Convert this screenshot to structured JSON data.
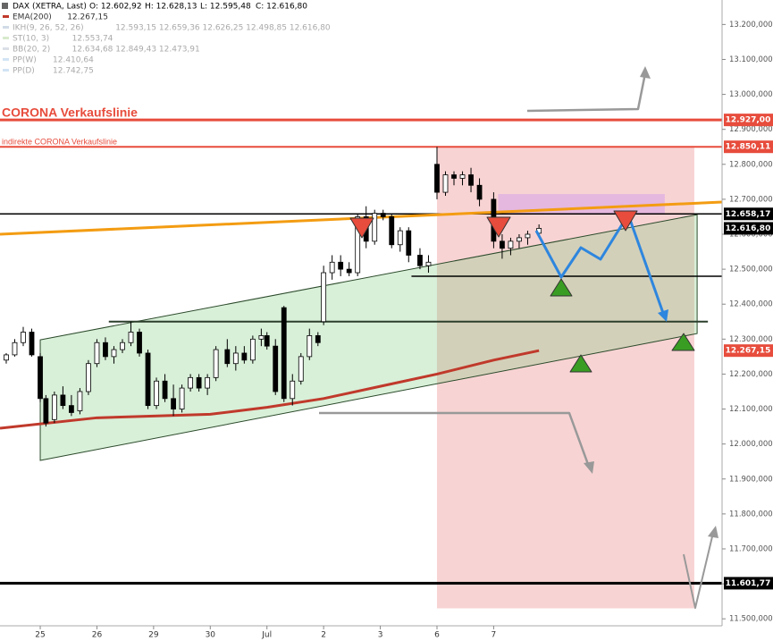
{
  "chart_data": {
    "type": "candlestick",
    "title": "DAX (XETRA, Last)",
    "ohlc": [
      "O: 12.602,92",
      "H: 12.628,13",
      "L: 12.595,48",
      "C: 12.616,80"
    ],
    "legend": [
      {
        "name": "EMA(200)",
        "value": "12.267,15",
        "color": "#c0392b",
        "faded": false
      },
      {
        "name": "IKH(9, 26, 52, 26)",
        "value": "12.593,15  12.659,36  12.626,25  12.498,85  12.616,80",
        "color": "#9ab0c8",
        "faded": true
      },
      {
        "name": "ST(10, 3)",
        "value": "12.553,74",
        "color": "#a8d08d",
        "faded": true
      },
      {
        "name": "BB(20, 2)",
        "value": "12.634,68  12.849,43  12.473,91",
        "color": "#b0b8c8",
        "faded": true
      },
      {
        "name": "PP(W)",
        "value": "12.410,64",
        "color": "#9cc3e6",
        "faded": true
      },
      {
        "name": "PP(D)",
        "value": "12.742,75",
        "color": "#9cc3e6",
        "faded": true
      }
    ],
    "annotations": [
      "CORONA Verkaufslinie",
      "indirekte CORONA Verkaufslinie"
    ],
    "xlim": [
      -0.71,
      12.03
    ],
    "ylim": [
      11480,
      13270
    ],
    "xticks": [
      {
        "value": 0,
        "label": "25"
      },
      {
        "value": 1,
        "label": "26"
      },
      {
        "value": 2,
        "label": "29"
      },
      {
        "value": 3,
        "label": "30"
      },
      {
        "value": 4,
        "label": "Jul"
      },
      {
        "value": 5,
        "label": "2"
      },
      {
        "value": 6,
        "label": "3"
      },
      {
        "value": 7,
        "label": "6"
      },
      {
        "value": 8,
        "label": "7"
      }
    ],
    "yticks": [
      {
        "value": 11500,
        "label": "11.500,000"
      },
      {
        "value": 11600,
        "label": "11.600,000"
      },
      {
        "value": 11700,
        "label": "11.700,000"
      },
      {
        "value": 11800,
        "label": "11.800,000"
      },
      {
        "value": 11900,
        "label": "11.900,000"
      },
      {
        "value": 12000,
        "label": "12.000,000"
      },
      {
        "value": 12100,
        "label": "12.100,000"
      },
      {
        "value": 12200,
        "label": "12.200,000"
      },
      {
        "value": 12300,
        "label": "12.300,000"
      },
      {
        "value": 12400,
        "label": "12.400,000"
      },
      {
        "value": 12500,
        "label": "12.500,000"
      },
      {
        "value": 12600,
        "label": "12.600,000"
      },
      {
        "value": 12700,
        "label": "12.700,000"
      },
      {
        "value": 12800,
        "label": "12.800,000"
      },
      {
        "value": 12900,
        "label": "12.900,000"
      },
      {
        "value": 13000,
        "label": "13.000,000"
      },
      {
        "value": 13100,
        "label": "13.100,000"
      },
      {
        "value": 13200,
        "label": "13.200,000"
      }
    ],
    "x": [
      -0.6,
      -0.45,
      -0.3,
      -0.15,
      0.0,
      0.1,
      0.25,
      0.4,
      0.55,
      0.7,
      0.85,
      1.0,
      1.15,
      1.3,
      1.45,
      1.6,
      1.75,
      1.9,
      2.05,
      2.2,
      2.35,
      2.5,
      2.65,
      2.8,
      2.95,
      3.1,
      3.3,
      3.45,
      3.6,
      3.75,
      3.9,
      4.0,
      4.15,
      4.3,
      4.45,
      4.6,
      4.75,
      4.9,
      5.0,
      5.15,
      5.3,
      5.45,
      5.6,
      5.75,
      5.9,
      6.05,
      6.2,
      6.35,
      6.5,
      6.7,
      6.85,
      7.0,
      7.15,
      7.3,
      7.45,
      7.6,
      7.75,
      8.0,
      8.15,
      8.3,
      8.45,
      8.6,
      8.8
    ],
    "open": [
      12240,
      12255,
      12290,
      12320,
      12250,
      12130,
      12070,
      12140,
      12110,
      12095,
      12150,
      12230,
      12290,
      12250,
      12270,
      12290,
      12320,
      12260,
      12110,
      12180,
      12130,
      12100,
      12160,
      12190,
      12160,
      12190,
      12270,
      12230,
      12260,
      12240,
      12300,
      12310,
      12280,
      12390,
      12130,
      12180,
      12250,
      12310,
      12350,
      12490,
      12520,
      12500,
      12490,
      12650,
      12580,
      12660,
      12650,
      12570,
      12610,
      12540,
      12510,
      12800,
      12720,
      12770,
      12760,
      12770,
      12740,
      12700,
      12580,
      12560,
      12580,
      12590,
      12602.92
    ],
    "high": [
      12260,
      12300,
      12335,
      12330,
      12260,
      12140,
      12150,
      12165,
      12140,
      12160,
      12240,
      12300,
      12305,
      12280,
      12300,
      12350,
      12330,
      12270,
      12190,
      12200,
      12170,
      12170,
      12200,
      12200,
      12200,
      12280,
      12300,
      12280,
      12280,
      12310,
      12330,
      12320,
      12300,
      12395,
      12200,
      12260,
      12330,
      12320,
      12510,
      12540,
      12540,
      12520,
      12660,
      12680,
      12670,
      12670,
      12660,
      12620,
      12620,
      12560,
      12540,
      12850,
      12780,
      12780,
      12780,
      12790,
      12760,
      12720,
      12600,
      12590,
      12600,
      12610,
      12628.13
    ],
    "low": [
      12230,
      12250,
      12280,
      12250,
      12120,
      12050,
      12060,
      12100,
      12080,
      12085,
      12140,
      12220,
      12240,
      12230,
      12260,
      12280,
      12250,
      12100,
      12100,
      12120,
      12080,
      12090,
      12150,
      12150,
      12140,
      12180,
      12220,
      12210,
      12230,
      12230,
      12280,
      12270,
      12140,
      12120,
      12110,
      12170,
      12240,
      12280,
      12340,
      12470,
      12480,
      12480,
      12480,
      12560,
      12570,
      12640,
      12560,
      12550,
      12520,
      12500,
      12490,
      12700,
      12710,
      12740,
      12740,
      12720,
      12680,
      12560,
      12530,
      12540,
      12560,
      12570,
      12595.48
    ],
    "close": [
      12255,
      12290,
      12320,
      12255,
      12130,
      12060,
      12140,
      12110,
      12090,
      12150,
      12230,
      12290,
      12250,
      12270,
      12290,
      12320,
      12260,
      12110,
      12180,
      12130,
      12100,
      12160,
      12190,
      12160,
      12190,
      12270,
      12230,
      12260,
      12240,
      12300,
      12310,
      12280,
      12150,
      12130,
      12180,
      12250,
      12310,
      12290,
      12490,
      12520,
      12500,
      12490,
      12650,
      12580,
      12660,
      12650,
      12570,
      12610,
      12540,
      12510,
      12520,
      12720,
      12770,
      12760,
      12770,
      12740,
      12700,
      12580,
      12560,
      12580,
      12590,
      12600,
      12616.8
    ],
    "up_color": "#ffffff",
    "down_color": "#000000",
    "overlays": [
      {
        "name": "EMA(200)",
        "color": "#c0392b",
        "x": [
          -0.71,
          1,
          2,
          3,
          4,
          5,
          6,
          7,
          8,
          8.8
        ],
        "values": [
          12045,
          12075,
          12080,
          12085,
          12105,
          12130,
          12165,
          12200,
          12240,
          12267.15
        ]
      },
      {
        "color": "#f39c12",
        "x": [
          -0.71,
          12.03
        ],
        "values": [
          12600,
          12692
        ]
      }
    ],
    "channel": {
      "x": [
        0,
        11.59
      ],
      "upper": [
        12298,
        12656
      ],
      "lower": [
        11953,
        12316
      ],
      "color": "#7fc97f"
    },
    "zones": [
      {
        "x": [
          7,
          11.54
        ],
        "y": [
          11530,
          12850
        ],
        "color": "#f4b6b6"
      },
      {
        "x": [
          8.08,
          11.02
        ],
        "y": [
          12658,
          12715
        ],
        "color": "#d9a6e8"
      }
    ],
    "levels": [
      {
        "value": 12927,
        "label": "12.927,00",
        "color": "#e74c3c",
        "width": 3,
        "line": true
      },
      {
        "value": 12850.11,
        "label": "12.850,11",
        "color": "#e74c3c",
        "width": 2,
        "line": true
      },
      {
        "value": 12658.17,
        "label": "12.658,17",
        "color": "#000000",
        "width": 1.5,
        "line": true
      },
      {
        "value": 12616.8,
        "label": "12.616,80",
        "color": "#000000",
        "width": 1,
        "line": false
      },
      {
        "value": 12267.15,
        "label": "12.267,15",
        "color": "#e74c3c",
        "width": 1,
        "line": false
      },
      {
        "value": 11601.77,
        "label": "11.601,77",
        "color": "#000000",
        "width": 3,
        "line": true
      },
      {
        "value": 12480,
        "color": "#000000",
        "width": 1.5,
        "line": true,
        "x": [
          6.55,
          12.03
        ]
      },
      {
        "value": 12350,
        "color": "#2c3e2c",
        "width": 2,
        "line": true,
        "x": [
          1.21,
          11.78
        ]
      }
    ]
  }
}
